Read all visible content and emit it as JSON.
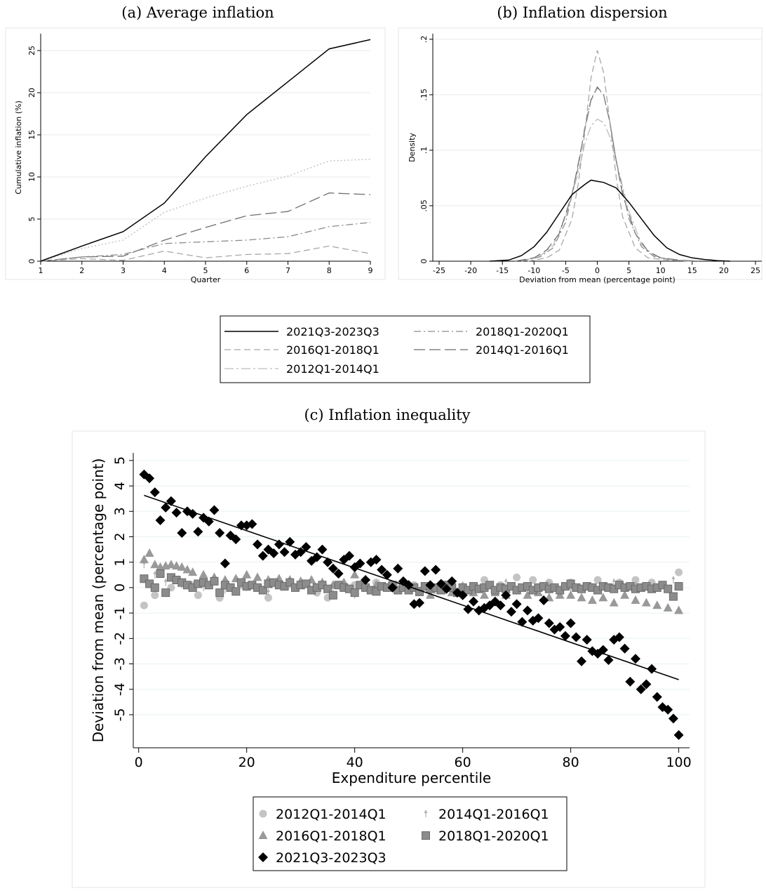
{
  "chart_data": [
    {
      "id": "a",
      "type": "line",
      "title": "(a) Average inflation",
      "xlabel": "Quarter",
      "ylabel": "Cumulative inflation (%)",
      "xlim": [
        1,
        9
      ],
      "ylim": [
        0,
        27
      ],
      "xticks": [
        1,
        2,
        3,
        4,
        5,
        6,
        7,
        8,
        9
      ],
      "yticks": [
        0,
        5,
        10,
        15,
        20,
        25
      ],
      "grid": true,
      "x": [
        1,
        2,
        3,
        4,
        5,
        6,
        7,
        8,
        9
      ],
      "series": [
        {
          "name": "2021Q3-2023Q3",
          "style": "solid",
          "color": "#000000",
          "values": [
            0,
            1.8,
            3.5,
            6.9,
            12.4,
            17.4,
            21.3,
            25.2,
            26.3
          ]
        },
        {
          "name": "2018Q1-2020Q1",
          "style": "dashdot",
          "color": "#8c8c8c",
          "values": [
            0,
            0.5,
            0.8,
            2.1,
            2.3,
            2.5,
            2.9,
            4.1,
            4.6
          ]
        },
        {
          "name": "2016Q1-2018Q1",
          "style": "dash",
          "color": "#a8a8a8",
          "values": [
            0,
            0.3,
            0.1,
            1.2,
            0.4,
            0.8,
            0.9,
            1.8,
            0.9
          ]
        },
        {
          "name": "2014Q1-2016Q1",
          "style": "longdash",
          "color": "#6e6e6e",
          "values": [
            0,
            0.5,
            0.6,
            2.5,
            4.0,
            5.4,
            5.9,
            8.1,
            7.9
          ]
        },
        {
          "name": "2012Q1-2014Q1",
          "style": "dot",
          "color": "#bdbdbd",
          "values": [
            0,
            1.5,
            2.5,
            5.8,
            7.5,
            8.9,
            10.1,
            11.9,
            12.1
          ]
        }
      ]
    },
    {
      "id": "b",
      "type": "line",
      "title": "(b) Inflation dispersion",
      "xlabel": "Deviation from mean (percentage point)",
      "ylabel": "Density",
      "xlim": [
        -26,
        26
      ],
      "ylim": [
        0,
        0.205
      ],
      "xticks": [
        -25,
        -20,
        -15,
        -10,
        -5,
        0,
        5,
        10,
        15,
        20,
        25
      ],
      "yticks": [
        0,
        0.05,
        0.1,
        0.15,
        0.2
      ],
      "ytick_labels": [
        "0",
        ".05",
        ".1",
        ".15",
        ".2"
      ],
      "grid": true,
      "series": [
        {
          "name": "2021Q3-2023Q3",
          "style": "solid",
          "color": "#000000",
          "x": [
            -17,
            -14,
            -12,
            -10,
            -8,
            -6,
            -4,
            -2,
            -1,
            0,
            1,
            3,
            5,
            7,
            9,
            11,
            13,
            15,
            17,
            19,
            21
          ],
          "values": [
            0,
            0.001,
            0.005,
            0.013,
            0.026,
            0.043,
            0.06,
            0.069,
            0.073,
            0.072,
            0.071,
            0.066,
            0.053,
            0.038,
            0.023,
            0.012,
            0.006,
            0.003,
            0.0015,
            0.0005,
            0
          ]
        },
        {
          "name": "2018Q1-2020Q1",
          "style": "dashdot",
          "color": "#8c8c8c",
          "x": [
            -12,
            -9,
            -7,
            -5,
            -3,
            -2,
            -1,
            0,
            1,
            2,
            3,
            5,
            7,
            9,
            12,
            15
          ],
          "values": [
            0,
            0.004,
            0.012,
            0.035,
            0.085,
            0.12,
            0.146,
            0.156,
            0.15,
            0.125,
            0.09,
            0.038,
            0.013,
            0.004,
            0.001,
            0
          ]
        },
        {
          "name": "2016Q1-2018Q1",
          "style": "dash",
          "color": "#a8a8a8",
          "x": [
            -11,
            -8,
            -6,
            -4,
            -3,
            -2,
            -1,
            0,
            1,
            2,
            3,
            4,
            6,
            8,
            11,
            15
          ],
          "values": [
            0,
            0.003,
            0.01,
            0.038,
            0.07,
            0.115,
            0.165,
            0.19,
            0.17,
            0.125,
            0.075,
            0.04,
            0.012,
            0.003,
            0.001,
            0
          ]
        },
        {
          "name": "2014Q1-2016Q1",
          "style": "longdash",
          "color": "#6e6e6e",
          "x": [
            -13,
            -10,
            -8,
            -6,
            -4,
            -3,
            -2,
            -1,
            0,
            1,
            2,
            3,
            4,
            6,
            8,
            10,
            13,
            16
          ],
          "values": [
            0,
            0.003,
            0.01,
            0.025,
            0.06,
            0.088,
            0.118,
            0.145,
            0.157,
            0.15,
            0.125,
            0.09,
            0.06,
            0.025,
            0.009,
            0.003,
            0.001,
            0
          ]
        },
        {
          "name": "2012Q1-2014Q1",
          "style": "dashdot2",
          "color": "#bdbdbd",
          "x": [
            -12,
            -9,
            -7,
            -5,
            -3,
            -2,
            -1,
            0,
            1,
            2,
            3,
            5,
            7,
            9,
            12,
            15
          ],
          "values": [
            0,
            0.005,
            0.014,
            0.04,
            0.08,
            0.105,
            0.122,
            0.128,
            0.125,
            0.112,
            0.09,
            0.045,
            0.015,
            0.005,
            0.001,
            0
          ]
        }
      ]
    },
    {
      "id": "c",
      "type": "scatter",
      "title": "(c) Inflation inequality",
      "xlabel": "Expenditure percentile",
      "ylabel": "Deviation from mean (percentage point)",
      "xlim": [
        -1,
        102
      ],
      "ylim": [
        -6.3,
        5.3
      ],
      "xticks": [
        0,
        20,
        40,
        60,
        80,
        100
      ],
      "yticks": [
        5,
        4,
        3,
        2,
        1,
        0,
        -1,
        -2,
        -3,
        -4,
        -5
      ],
      "grid": true,
      "fit_line": {
        "series": "2021Q3-2023Q3",
        "x": [
          1,
          100
        ],
        "y": [
          3.63,
          -3.62
        ]
      },
      "series": [
        {
          "name": "2012Q1-2014Q1",
          "marker": "circle",
          "color": "#c4c4c4",
          "x": [
            1,
            3,
            6,
            10,
            11,
            15,
            19,
            24,
            29,
            33,
            35,
            40,
            44,
            47,
            51,
            55,
            60,
            64,
            67,
            70,
            73,
            76,
            80,
            85,
            89,
            92,
            95,
            100
          ],
          "values": [
            -0.7,
            -0.3,
            0.0,
            0.1,
            -0.3,
            -0.4,
            0.1,
            -0.4,
            0.0,
            -0.2,
            -0.4,
            0.1,
            0.2,
            0.0,
            0.1,
            -0.1,
            0.0,
            0.3,
            0.1,
            0.4,
            0.3,
            0.2,
            0.2,
            0.3,
            0.2,
            0.3,
            0.2,
            0.6
          ]
        },
        {
          "name": "2014Q1-2016Q1",
          "marker": "spike",
          "color": "#b0b0b0",
          "x": [
            1,
            3,
            5,
            8,
            12,
            16,
            20,
            24,
            28,
            32,
            36,
            40,
            44,
            48,
            52,
            56,
            60,
            64,
            68,
            72,
            76,
            80,
            84,
            88,
            92,
            96,
            99
          ],
          "values": [
            0.9,
            0.5,
            0.2,
            0.1,
            0.0,
            -0.1,
            0.0,
            -0.2,
            0.1,
            -0.1,
            0.0,
            -0.3,
            0.0,
            0.1,
            -0.1,
            0.0,
            0.1,
            -0.1,
            0.2,
            0.0,
            0.1,
            -0.1,
            0.0,
            0.2,
            0.1,
            0.0,
            0.3
          ]
        },
        {
          "name": "2016Q1-2018Q1",
          "marker": "triangle",
          "color": "#999999",
          "x": [
            1,
            2,
            3,
            4,
            5,
            6,
            7,
            8,
            9,
            10,
            12,
            14,
            16,
            18,
            20,
            22,
            24,
            26,
            28,
            30,
            32,
            34,
            36,
            38,
            40,
            42,
            44,
            46,
            48,
            50,
            52,
            54,
            56,
            58,
            60,
            62,
            64,
            66,
            68,
            70,
            72,
            74,
            76,
            78,
            80,
            82,
            84,
            86,
            88,
            90,
            92,
            94,
            96,
            98,
            100
          ],
          "values": [
            1.1,
            1.35,
            0.9,
            0.8,
            0.85,
            0.9,
            0.85,
            0.8,
            0.7,
            0.6,
            0.5,
            0.4,
            0.3,
            0.35,
            0.5,
            0.4,
            0.3,
            0.35,
            0.3,
            0.25,
            0.3,
            0.2,
            0.1,
            0.2,
            0.5,
            0.1,
            0.1,
            0.0,
            -0.1,
            0.0,
            -0.2,
            -0.3,
            -0.1,
            -0.2,
            -0.1,
            -0.2,
            -0.3,
            -0.2,
            -0.3,
            -0.1,
            -0.3,
            -0.2,
            -0.4,
            -0.3,
            -0.3,
            -0.4,
            -0.5,
            -0.4,
            -0.6,
            -0.3,
            -0.5,
            -0.6,
            -0.7,
            -0.8,
            -0.9
          ]
        },
        {
          "name": "2018Q1-2020Q1",
          "marker": "square",
          "color": "#8c8c8c",
          "x": [
            1,
            2,
            3,
            4,
            5,
            6,
            7,
            8,
            9,
            10,
            11,
            12,
            13,
            14,
            15,
            16,
            17,
            18,
            19,
            20,
            21,
            22,
            23,
            24,
            25,
            26,
            27,
            28,
            29,
            30,
            31,
            32,
            33,
            34,
            35,
            36,
            37,
            38,
            39,
            40,
            41,
            42,
            43,
            44,
            45,
            46,
            47,
            48,
            49,
            50,
            51,
            52,
            53,
            54,
            55,
            56,
            57,
            58,
            59,
            60,
            61,
            62,
            63,
            64,
            65,
            66,
            67,
            68,
            69,
            70,
            71,
            72,
            73,
            74,
            75,
            76,
            77,
            78,
            79,
            80,
            81,
            82,
            83,
            84,
            85,
            86,
            87,
            88,
            89,
            90,
            91,
            92,
            93,
            94,
            95,
            96,
            97,
            98,
            99,
            100
          ],
          "values": [
            0.35,
            0.15,
            0.0,
            0.55,
            -0.2,
            0.4,
            0.3,
            0.2,
            0.1,
            0.0,
            0.15,
            0.2,
            0.1,
            0.25,
            -0.2,
            0.1,
            0.0,
            -0.15,
            0.2,
            0.05,
            0.1,
            0.0,
            -0.1,
            0.15,
            0.2,
            0.1,
            0.05,
            0.2,
            0.0,
            0.1,
            0.15,
            -0.1,
            0.0,
            0.1,
            -0.05,
            -0.3,
            0.1,
            0.0,
            -0.05,
            -0.2,
            0.1,
            0.0,
            -0.1,
            -0.15,
            0.05,
            0.0,
            0.1,
            -0.1,
            0.0,
            -0.1,
            0.0,
            -0.15,
            0.05,
            -0.05,
            0.0,
            -0.1,
            0.1,
            0.0,
            -0.2,
            0.0,
            -0.1,
            0.05,
            -0.05,
            0.0,
            0.1,
            -0.1,
            0.0,
            -0.05,
            0.05,
            -0.1,
            0.0,
            0.05,
            -0.1,
            0.0,
            0.05,
            -0.05,
            0.0,
            -0.1,
            0.05,
            0.15,
            0.0,
            -0.05,
            0.05,
            0.0,
            -0.1,
            0.05,
            0.0,
            -0.05,
            0.1,
            0.0,
            0.05,
            -0.05,
            0.0,
            0.05,
            -0.05,
            0.0,
            0.1,
            -0.05,
            -0.35,
            0.05
          ]
        },
        {
          "name": "2021Q3-2023Q3",
          "marker": "diamond",
          "color": "#000000",
          "x": [
            1,
            2,
            3,
            4,
            5,
            6,
            7,
            8,
            9,
            10,
            11,
            12,
            13,
            14,
            15,
            16,
            17,
            18,
            19,
            20,
            21,
            22,
            23,
            24,
            25,
            26,
            27,
            28,
            29,
            30,
            31,
            32,
            33,
            34,
            35,
            36,
            37,
            38,
            39,
            40,
            41,
            42,
            43,
            44,
            45,
            46,
            47,
            48,
            49,
            50,
            51,
            52,
            53,
            54,
            55,
            56,
            57,
            58,
            59,
            60,
            61,
            62,
            63,
            64,
            65,
            66,
            67,
            68,
            69,
            70,
            71,
            72,
            73,
            74,
            75,
            76,
            77,
            78,
            79,
            80,
            81,
            82,
            83,
            84,
            85,
            86,
            87,
            88,
            89,
            90,
            91,
            92,
            93,
            94,
            95,
            96,
            97,
            98,
            99,
            100
          ],
          "values": [
            4.45,
            4.3,
            3.75,
            2.65,
            3.15,
            3.4,
            2.95,
            2.15,
            3.0,
            2.9,
            2.2,
            2.75,
            2.6,
            3.05,
            2.15,
            0.95,
            2.05,
            1.9,
            2.45,
            2.45,
            2.5,
            1.7,
            1.25,
            1.5,
            1.35,
            1.7,
            1.4,
            1.8,
            1.3,
            1.4,
            1.6,
            1.05,
            1.2,
            1.5,
            1.0,
            0.75,
            0.55,
            1.1,
            1.25,
            0.8,
            0.95,
            0.3,
            1.0,
            1.1,
            0.7,
            0.5,
            0.0,
            0.75,
            0.25,
            0.1,
            -0.65,
            -0.6,
            0.65,
            0.1,
            0.7,
            0.15,
            -0.05,
            0.25,
            -0.2,
            -0.3,
            -0.85,
            -0.55,
            -0.9,
            -0.8,
            -0.7,
            -0.55,
            -0.7,
            -0.3,
            -0.95,
            -0.65,
            -1.35,
            -0.9,
            -1.3,
            -1.2,
            -0.5,
            -1.4,
            -1.65,
            -1.55,
            -1.9,
            -1.4,
            -1.95,
            -2.9,
            -2.05,
            -2.5,
            -2.6,
            -2.45,
            -2.85,
            -2.05,
            -1.95,
            -2.4,
            -3.7,
            -2.8,
            -4.0,
            -3.8,
            -3.2,
            -4.3,
            -4.7,
            -4.8,
            -5.15,
            -5.8
          ]
        }
      ]
    }
  ],
  "legends": {
    "lines": [
      {
        "label": "2021Q3-2023Q3",
        "style": "solid",
        "color": "#000000"
      },
      {
        "label": "2018Q1-2020Q1",
        "style": "dashdot",
        "color": "#8c8c8c"
      },
      {
        "label": "2016Q1-2018Q1",
        "style": "dash",
        "color": "#a8a8a8"
      },
      {
        "label": "2014Q1-2016Q1",
        "style": "longdash",
        "color": "#6e6e6e"
      },
      {
        "label": "2012Q1-2014Q1",
        "style": "dashdot2",
        "color": "#bdbdbd"
      }
    ],
    "markers": [
      {
        "label": "2012Q1-2014Q1",
        "marker": "circle",
        "color": "#c4c4c4"
      },
      {
        "label": "2014Q1-2016Q1",
        "marker": "spike",
        "color": "#b0b0b0"
      },
      {
        "label": "2016Q1-2018Q1",
        "marker": "triangle",
        "color": "#999999"
      },
      {
        "label": "2018Q1-2020Q1",
        "marker": "square",
        "color": "#8c8c8c"
      },
      {
        "label": "2021Q3-2023Q3",
        "marker": "diamond",
        "color": "#000000"
      }
    ]
  }
}
